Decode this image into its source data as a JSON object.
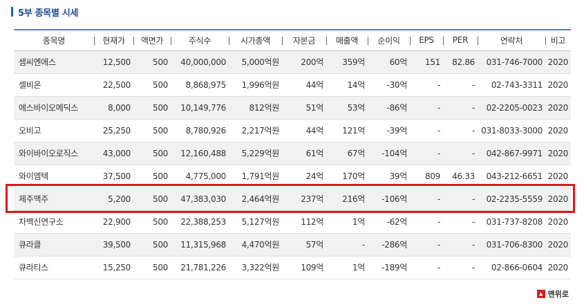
{
  "section_title": "5부 종목별 시세",
  "columns": [
    "종목명",
    "현재가",
    "액면가",
    "주식수",
    "시가총액",
    "자본금",
    "매출액",
    "순이익",
    "EPS",
    "PER",
    "연락처",
    "비고"
  ],
  "rows": [
    {
      "name": "샘씨엔에스",
      "price": "12,500",
      "par": "500",
      "shares": "40,000,000",
      "mcap": "5,000억원",
      "capital": "200억",
      "sales": "359억",
      "profit": "60억",
      "eps": "151",
      "per": "82.86",
      "contact": "031-746-7000",
      "note": "2020"
    },
    {
      "name": "셀비온",
      "price": "22,500",
      "par": "500",
      "shares": "8,868,975",
      "mcap": "1,996억원",
      "capital": "44억",
      "sales": "14억",
      "profit": "-30억",
      "eps": "-",
      "per": "-",
      "contact": "02-743-3311",
      "note": "2020"
    },
    {
      "name": "에스바이오메딕스",
      "price": "8,000",
      "par": "500",
      "shares": "10,149,776",
      "mcap": "812억원",
      "capital": "51억",
      "sales": "53억",
      "profit": "-86억",
      "eps": "-",
      "per": "-",
      "contact": "02-2205-0023",
      "note": "2020"
    },
    {
      "name": "오비고",
      "price": "25,250",
      "par": "500",
      "shares": "8,780,926",
      "mcap": "2,217억원",
      "capital": "44억",
      "sales": "121억",
      "profit": "-39억",
      "eps": "-",
      "per": "-",
      "contact": "031-8033-3000",
      "note": "2020"
    },
    {
      "name": "와이바이오로직스",
      "price": "43,000",
      "par": "500",
      "shares": "12,160,488",
      "mcap": "5,229억원",
      "capital": "61억",
      "sales": "67억",
      "profit": "-104억",
      "eps": "-",
      "per": "-",
      "contact": "042-867-9971",
      "note": "2020"
    },
    {
      "name": "와이엠텍",
      "price": "37,500",
      "par": "500",
      "shares": "4,775,000",
      "mcap": "1,791억원",
      "capital": "24억",
      "sales": "170억",
      "profit": "39억",
      "eps": "809",
      "per": "46.33",
      "contact": "043-212-6651",
      "note": "2020"
    },
    {
      "name": "제주맥주",
      "price": "5,200",
      "par": "500",
      "shares": "47,383,030",
      "mcap": "2,464억원",
      "capital": "237억",
      "sales": "216억",
      "profit": "-106억",
      "eps": "-",
      "per": "-",
      "contact": "02-2235-5559",
      "note": "2020"
    },
    {
      "name": "차백신연구소",
      "price": "22,900",
      "par": "500",
      "shares": "22,388,253",
      "mcap": "5,127억원",
      "capital": "112억",
      "sales": "1억",
      "profit": "-62억",
      "eps": "-",
      "per": "-",
      "contact": "031-737-8208",
      "note": "2020"
    },
    {
      "name": "큐라클",
      "price": "39,500",
      "par": "500",
      "shares": "11,315,968",
      "mcap": "4,470억원",
      "capital": "57억",
      "sales": "-",
      "profit": "-286억",
      "eps": "-",
      "per": "-",
      "contact": "031-706-8300",
      "note": "2020"
    },
    {
      "name": "큐라티스",
      "price": "15,250",
      "par": "500",
      "shares": "21,781,226",
      "mcap": "3,322억원",
      "capital": "109억",
      "sales": "1억",
      "profit": "-189억",
      "eps": "-",
      "per": "-",
      "contact": "02-866-0604",
      "note": "2020"
    }
  ],
  "highlight_color": "#e0161d",
  "header_accent": "#5d7fb2",
  "back_to_top": {
    "icon": "up-arrow-icon",
    "label": "맨위로"
  }
}
